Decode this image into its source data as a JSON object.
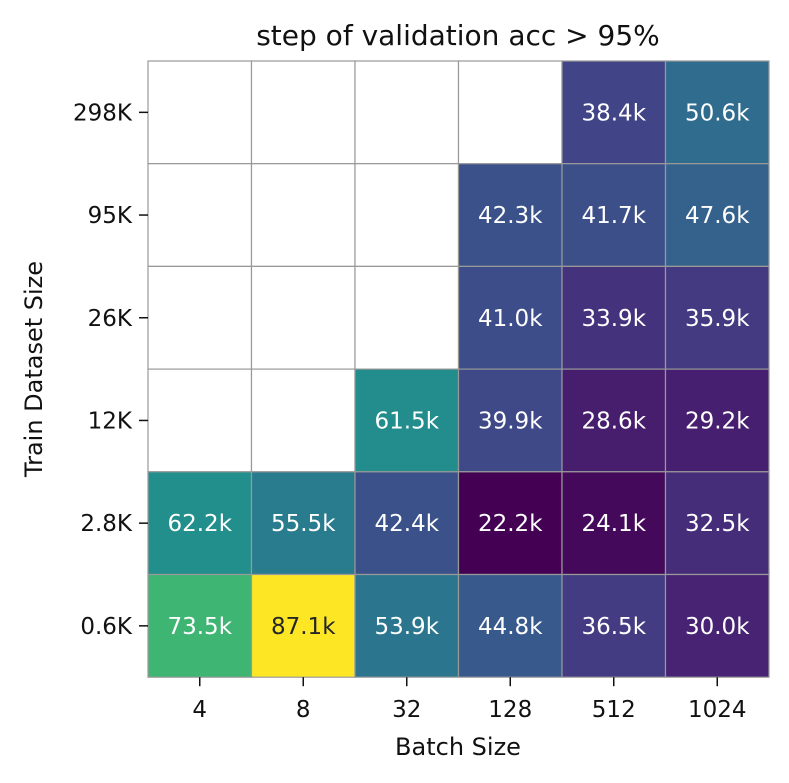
{
  "chart_data": {
    "type": "heatmap",
    "title": "step of validation acc > 95%",
    "xlabel": "Batch Size",
    "ylabel": "Train Dataset Size",
    "x_categories": [
      "4",
      "8",
      "32",
      "128",
      "512",
      "1024"
    ],
    "y_categories": [
      "298K",
      "95K",
      "26K",
      "12K",
      "2.8K",
      "0.6K"
    ],
    "values": [
      [
        null,
        null,
        null,
        null,
        38.4,
        50.6
      ],
      [
        null,
        null,
        null,
        42.3,
        41.7,
        47.6
      ],
      [
        null,
        null,
        null,
        41.0,
        33.9,
        35.9
      ],
      [
        null,
        null,
        61.5,
        39.9,
        28.6,
        29.2
      ],
      [
        62.2,
        55.5,
        42.4,
        22.2,
        24.1,
        32.5
      ],
      [
        73.5,
        87.1,
        53.9,
        44.8,
        36.5,
        30.0
      ]
    ],
    "cell_labels": [
      [
        "",
        "",
        "",
        "",
        "38.4k",
        "50.6k"
      ],
      [
        "",
        "",
        "",
        "42.3k",
        "41.7k",
        "47.6k"
      ],
      [
        "",
        "",
        "",
        "41.0k",
        "33.9k",
        "35.9k"
      ],
      [
        "",
        "",
        "61.5k",
        "39.9k",
        "28.6k",
        "29.2k"
      ],
      [
        "62.2k",
        "55.5k",
        "42.4k",
        "22.2k",
        "24.1k",
        "32.5k"
      ],
      [
        "73.5k",
        "87.1k",
        "53.9k",
        "44.8k",
        "36.5k",
        "30.0k"
      ]
    ],
    "colormap": "viridis",
    "value_range": [
      22.2,
      87.1
    ],
    "missing_color": "#ffffff",
    "grid_color": "#999999",
    "legend": "none"
  }
}
